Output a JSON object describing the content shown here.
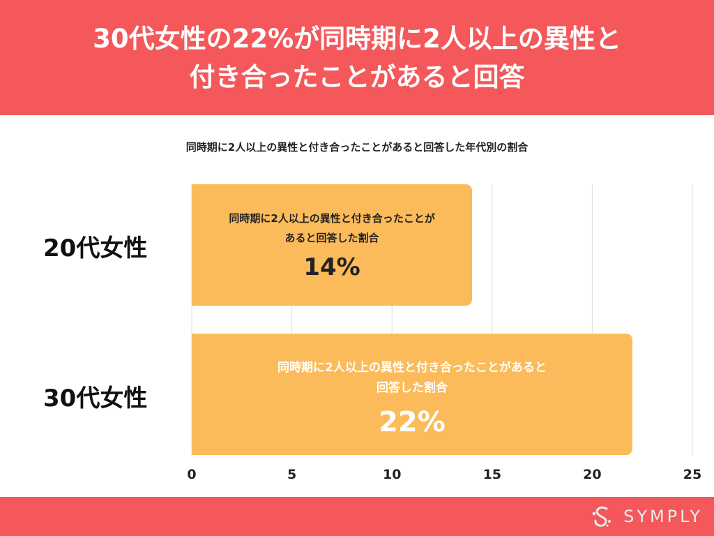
{
  "header": {
    "title_line1": "30代女性の22%が同時期に2人以上の異性と",
    "title_line2": "付き合ったことがあると回答"
  },
  "subtitle": "同時期に2人以上の異性と付き合ったことがあると回答した年代別の割合",
  "colors": {
    "header_bg": "#f4585a",
    "bar": "#fcbb5a",
    "grid": "#dddddd"
  },
  "chart_data": {
    "type": "bar",
    "orientation": "horizontal",
    "categories": [
      "20代女性",
      "30代女性"
    ],
    "values": [
      14,
      22
    ],
    "bar_labels": [
      {
        "lines": [
          "同時期に2人以上の異性と付き合ったことが",
          "あると回答した割合"
        ],
        "value": "14%"
      },
      {
        "lines": [
          "同時期に2人以上の異性と付き合ったことがあると",
          "回答した割合"
        ],
        "value": "22%"
      }
    ],
    "xlim": [
      0,
      25
    ],
    "xticks": [
      "0",
      "5",
      "10",
      "15",
      "20",
      "25"
    ],
    "grid": true
  },
  "footer": {
    "logo_text": "SYMPLY",
    "logo_icon": "symply-s-icon"
  }
}
